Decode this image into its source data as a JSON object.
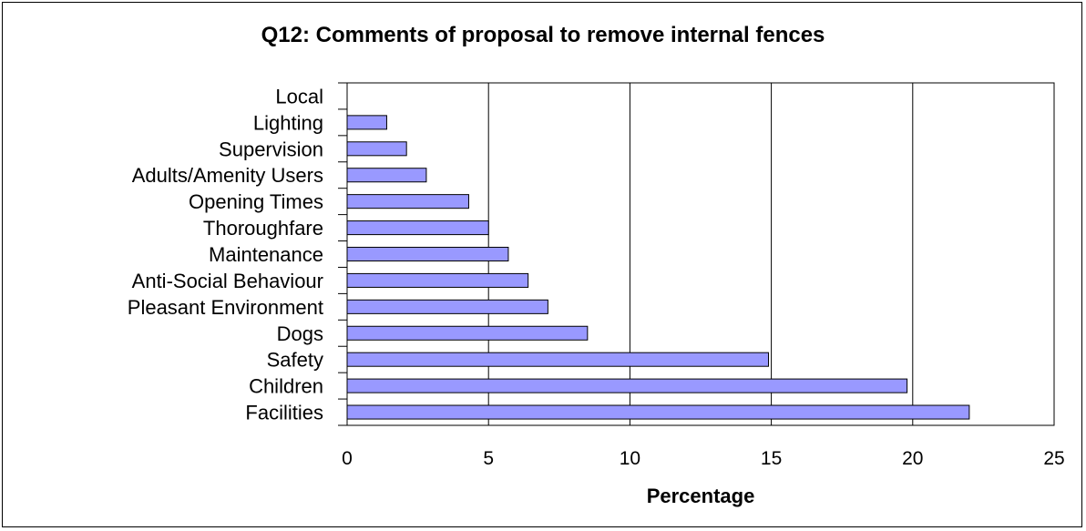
{
  "chart_data": {
    "type": "bar",
    "orientation": "horizontal",
    "title": "Q12: Comments of proposal to remove internal fences",
    "xlabel": "Percentage",
    "ylabel": "",
    "categories": [
      "Local",
      "Lighting",
      "Supervision",
      "Adults/Amenity Users",
      "Opening Times",
      "Thoroughfare",
      "Maintenance",
      "Anti-Social Behaviour",
      "Pleasant Environment",
      "Dogs",
      "Safety",
      "Children",
      "Facilities"
    ],
    "values": [
      0,
      1.4,
      2.1,
      2.8,
      4.3,
      5.0,
      5.7,
      6.4,
      7.1,
      8.5,
      14.9,
      19.8,
      22.0
    ],
    "xlim": [
      0,
      25
    ],
    "xticks": [
      "0",
      "5",
      "10",
      "15",
      "20",
      "25"
    ],
    "grid": "vertical",
    "legend": "none",
    "colors": {
      "bar_fill": "#9999FF",
      "bar_stroke": "#000000",
      "grid": "#000000",
      "frame": "#000000"
    }
  }
}
